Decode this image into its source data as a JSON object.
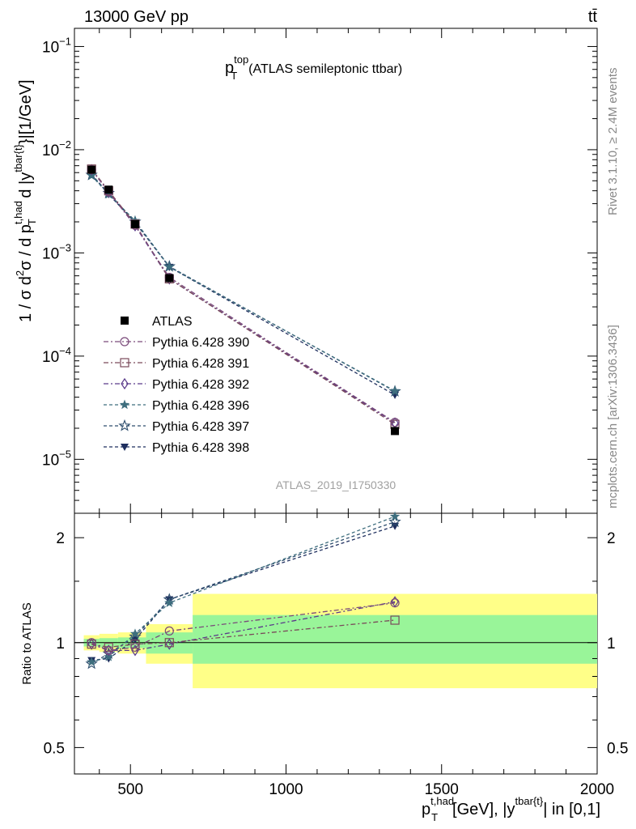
{
  "header": {
    "left": "13000 GeV pp",
    "right": "tt̄"
  },
  "side_text": {
    "rivet": "Rivet 3.1.10, ≥ 2.4M events",
    "mcplots": "mcplots.cern.ch [arXiv:1306.3436]"
  },
  "analysis_label": "ATLAS_2019_I1750330",
  "chart_data": [
    {
      "panel": "main",
      "type": "scatter",
      "title_parts": {
        "p": "p",
        "sup": "top",
        "sub": "T",
        "rest": "(ATLAS semileptonic ttbar)"
      },
      "ylabel_text": "1 / σ d²σ / d p_T^{t,had} d |y^{tbar{t}}|[1/GeV]",
      "yscale": "log",
      "xlim": [
        320,
        2000
      ],
      "ylim": [
        3e-06,
        0.15
      ],
      "y_ticks": [
        {
          "v": 1e-05,
          "b": "10",
          "e": "−5"
        },
        {
          "v": 0.0001,
          "b": "10",
          "e": "−4"
        },
        {
          "v": 0.001,
          "b": "10",
          "e": "−3"
        },
        {
          "v": 0.01,
          "b": "10",
          "e": "−2"
        },
        {
          "v": 0.1,
          "b": "10",
          "e": "−1"
        }
      ],
      "x": [
        375,
        430,
        515,
        625,
        1350
      ],
      "legend_placement": "center-left",
      "series": [
        {
          "name": "ATLAS",
          "color": "#000000",
          "marker": "square-filled",
          "dash": "",
          "values": [
            0.0064,
            0.0041,
            0.0019,
            0.00057,
            1.88e-05
          ]
        },
        {
          "name": "Pythia 6.428 390",
          "color": "#7a4a7a",
          "marker": "circle",
          "dash": "6,3,2,3",
          "values": [
            0.0064,
            0.0039,
            0.00185,
            0.00058,
            2.28e-05
          ]
        },
        {
          "name": "Pythia 6.428 391",
          "color": "#7a4a5a",
          "marker": "square",
          "dash": "6,3,2,3",
          "values": [
            0.0065,
            0.004,
            0.0019,
            0.00056,
            2.18e-05
          ]
        },
        {
          "name": "Pythia 6.428 392",
          "color": "#5a3a8a",
          "marker": "diamond",
          "dash": "6,3,2,3",
          "values": [
            0.0064,
            0.0039,
            0.00183,
            0.00056,
            2.25e-05
          ]
        },
        {
          "name": "Pythia 6.428 396",
          "color": "#3e6e7e",
          "marker": "star-filled",
          "dash": "4,3",
          "values": [
            0.0056,
            0.0037,
            0.00205,
            0.00073,
            4.6e-05
          ]
        },
        {
          "name": "Pythia 6.428 397",
          "color": "#2e4e6e",
          "marker": "star",
          "dash": "4,3",
          "values": [
            0.0057,
            0.0038,
            0.002,
            0.00074,
            4.55e-05
          ]
        },
        {
          "name": "Pythia 6.428 398",
          "color": "#1e2e5e",
          "marker": "triangle-down",
          "dash": "4,3",
          "values": [
            0.0058,
            0.0037,
            0.00197,
            0.00073,
            4.2e-05
          ]
        }
      ]
    },
    {
      "panel": "ratio",
      "type": "scatter",
      "ylabel": "Ratio to ATLAS",
      "yscale": "log",
      "xlim": [
        320,
        2000
      ],
      "ylim": [
        0.42,
        2.35
      ],
      "y_ticks": [
        {
          "v": 0.5,
          "t": "0.5"
        },
        {
          "v": 1,
          "t": "1"
        },
        {
          "v": 2,
          "t": "2"
        }
      ],
      "x_ticks": [
        {
          "v": 500,
          "t": "500"
        },
        {
          "v": 1000,
          "t": "1000"
        },
        {
          "v": 1500,
          "t": "1500"
        },
        {
          "v": 2000,
          "t": "2000"
        }
      ],
      "xlabel_parts": {
        "p": "p",
        "sup": "t,had",
        "sub": "T",
        "mid": "[GeV], |y",
        "sup2": "tbar{t}",
        "end": "| in [0,1]"
      },
      "bands": [
        {
          "x0": 350,
          "x1": 400,
          "green": [
            0.975,
            1.025
          ],
          "yellow": [
            0.95,
            1.05
          ]
        },
        {
          "x0": 400,
          "x1": 460,
          "green": [
            0.97,
            1.03
          ],
          "yellow": [
            0.94,
            1.06
          ]
        },
        {
          "x0": 460,
          "x1": 550,
          "green": [
            0.965,
            1.035
          ],
          "yellow": [
            0.93,
            1.07
          ]
        },
        {
          "x0": 550,
          "x1": 700,
          "green": [
            0.93,
            1.07
          ],
          "yellow": [
            0.87,
            1.13
          ]
        },
        {
          "x0": 700,
          "x1": 2000,
          "green": [
            0.87,
            1.2
          ],
          "yellow": [
            0.74,
            1.38
          ]
        }
      ],
      "x": [
        375,
        430,
        515,
        625,
        1350
      ],
      "series": [
        {
          "name": "Pythia 6.428 390",
          "values": [
            1.0,
            0.95,
            0.97,
            1.08,
            1.3
          ]
        },
        {
          "name": "Pythia 6.428 391",
          "values": [
            0.99,
            0.97,
            0.99,
            1.0,
            1.16
          ]
        },
        {
          "name": "Pythia 6.428 392",
          "values": [
            0.99,
            0.95,
            0.95,
            0.99,
            1.31
          ]
        },
        {
          "name": "Pythia 6.428 396",
          "values": [
            0.88,
            0.91,
            1.06,
            1.3,
            2.3
          ]
        },
        {
          "name": "Pythia 6.428 397",
          "values": [
            0.87,
            0.93,
            1.04,
            1.33,
            2.22
          ]
        },
        {
          "name": "Pythia 6.428 398",
          "values": [
            0.89,
            0.9,
            1.02,
            1.33,
            2.16
          ]
        }
      ]
    }
  ]
}
